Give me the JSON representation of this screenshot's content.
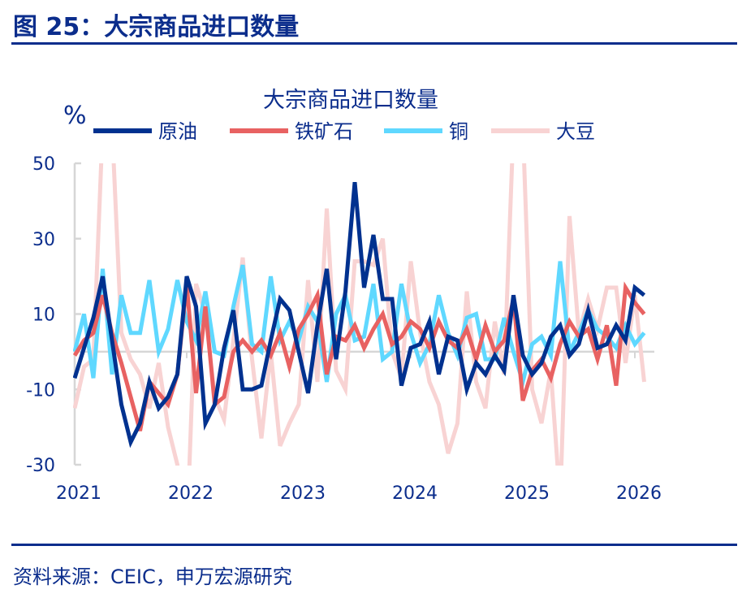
{
  "figure_title": "图 25：大宗商品进口数量",
  "source": "资料来源：CEIC，申万宏源研究",
  "chart_data": {
    "type": "line",
    "title": "大宗商品进口数量",
    "ylabel": "%",
    "xlabel": "",
    "ylim": [
      -30,
      50
    ],
    "yticks": [
      50,
      30,
      10,
      -10,
      -30
    ],
    "xticks": [
      "2021",
      "2022",
      "2023",
      "2024",
      "2025",
      "2026"
    ],
    "x_start": "2021-01",
    "x_frequency": "monthly",
    "grid": false,
    "legend": "top",
    "series": [
      {
        "name": "原油",
        "color": "#00318f",
        "values": [
          -7,
          1,
          9,
          20,
          3,
          -14,
          -24,
          -19,
          -8,
          -15,
          -12,
          -6,
          20,
          12,
          -19,
          -14,
          1,
          11,
          -10,
          -10,
          -9,
          3,
          14,
          11,
          0,
          -11,
          7,
          22,
          -2,
          16,
          45,
          17,
          31,
          14,
          14,
          -9,
          1,
          2,
          8,
          -6,
          4,
          3,
          -10,
          -3,
          -6,
          -1,
          -5,
          15,
          -1,
          -6,
          -3,
          4,
          7,
          -1,
          2,
          11,
          1,
          2,
          7,
          3,
          17,
          15
        ]
      },
      {
        "name": "铁矿石",
        "color": "#e86262",
        "values": [
          -1,
          3,
          5,
          15,
          5,
          -3,
          -12,
          -21,
          -8,
          -11,
          -14,
          -6,
          18,
          -11,
          12,
          -14,
          -12,
          0,
          3,
          0,
          3,
          -1,
          5,
          -4,
          6,
          10,
          15,
          -6,
          4,
          3,
          7,
          1,
          6,
          10,
          2,
          4,
          8,
          6,
          1,
          8,
          3,
          1,
          6,
          -2,
          7,
          0,
          3,
          14,
          -13,
          -5,
          -2,
          -7,
          2,
          8,
          4,
          6,
          -2,
          7,
          -9,
          17,
          13,
          10
        ]
      },
      {
        "name": "铜",
        "color": "#5fd8ff",
        "values": [
          0,
          10,
          -7,
          22,
          -6,
          15,
          5,
          5,
          19,
          0,
          6,
          19,
          8,
          3,
          16,
          0,
          -1,
          12,
          23,
          2,
          0,
          20,
          3,
          8,
          3,
          12,
          8,
          -8,
          10,
          15,
          3,
          4,
          18,
          -2,
          0,
          18,
          5,
          -3,
          2,
          15,
          5,
          -1,
          9,
          10,
          -2,
          -2,
          9,
          0,
          -8,
          2,
          4,
          -1,
          24,
          0,
          5,
          11,
          6,
          4,
          1,
          7,
          2,
          5
        ]
      },
      {
        "name": "大豆",
        "color": "#f8d3d3",
        "values": [
          -15,
          -4,
          -2,
          60,
          60,
          5,
          -2,
          -6,
          -15,
          -3,
          -20,
          -30,
          -50,
          18,
          10,
          -12,
          -18,
          3,
          25,
          -2,
          -23,
          0,
          -25,
          -19,
          -14,
          19,
          -8,
          38,
          -5,
          -10,
          24,
          24,
          23,
          30,
          0,
          -7,
          24,
          5,
          -8,
          -14,
          -27,
          -19,
          16,
          -8,
          -15,
          8,
          -6,
          60,
          60,
          -10,
          -19,
          -5,
          -40,
          36,
          5,
          14,
          6,
          17,
          17,
          -3,
          15,
          -8
        ]
      }
    ]
  }
}
